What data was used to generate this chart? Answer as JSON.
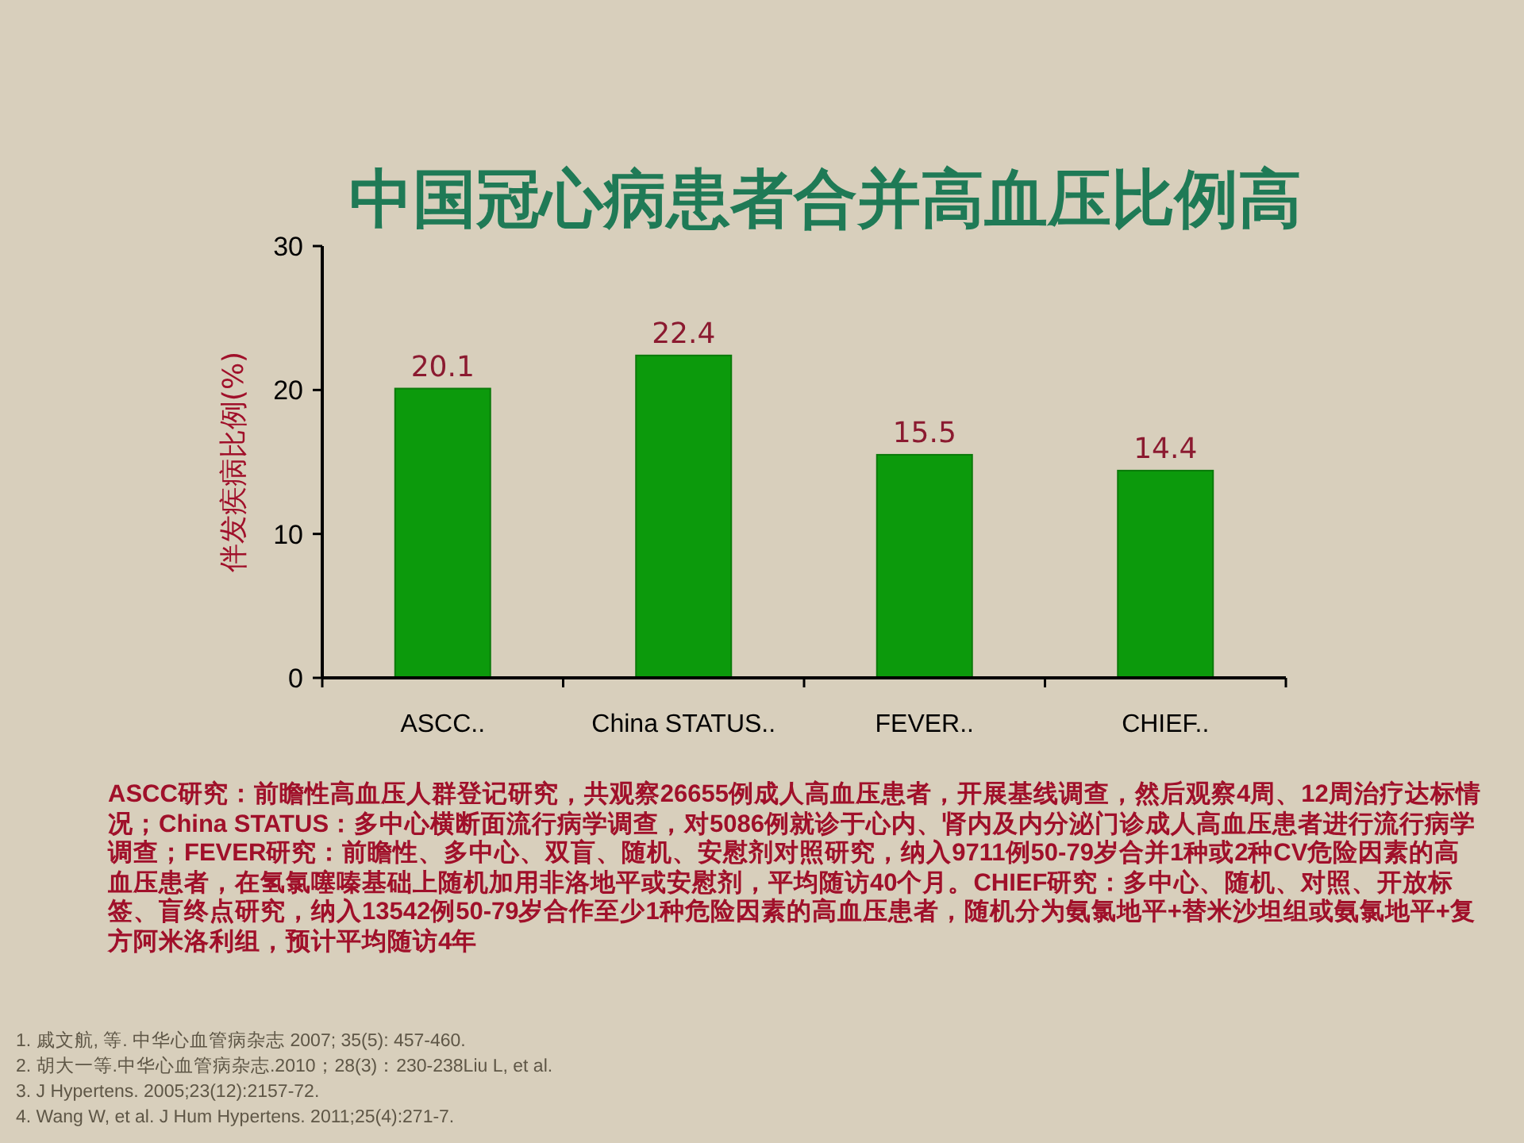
{
  "chart_data": {
    "type": "bar",
    "title": "中国冠心病患者合并高血压比例高",
    "ylabel": "伴发疾病比例(%)",
    "categories": [
      "ASCC..",
      "China STATUS..",
      "FEVER..",
      "CHIEF.."
    ],
    "values": [
      20.1,
      22.4,
      15.5,
      14.4
    ],
    "color": "#0c9a0c",
    "ylim": [
      0,
      30
    ],
    "yticks": [
      0,
      10,
      20,
      30
    ],
    "grid": false,
    "data_labels": true,
    "annotations": [
      "ASCC研究：前瞻性高血压人群登记研究，共观察26655例成人高血压患者，开展基线调查，然后观察4周、12周治疗达标情况；China STATUS：多中心横断面流行病学调查，对5086例就诊于心内、肾内及内分泌门诊成人高血压患者进行流行病学调查；FEVER研究：前瞻性、多中心、双盲、随机、安慰剂对照研究，纳入9711例50-79岁合并1种或2种CV危险因素的高血压患者，在氢氯噻嗪基础上随机加用非洛地平或安慰剂，平均随访40个月。CHIEF研究：多中心、随机、对照、开放标签、盲终点研究，纳入13542例50-79岁合作至少1种危险因素的高血压患者，随机分为氨氯地平+替米沙坦组或氨氯地平+复方阿米洛利组，预计平均随访4年",
      "1.  戚文航, 等. 中华心血管病杂志 2007; 35(5): 457-460.",
      "2.  胡大一等.中华心血管病杂志.2010；28(3)：230-238Liu L, et al.",
      "3.  J Hypertens. 2005;23(12):2157-72.",
      "4.  Wang W, et al. J Hum Hypertens. 2011;25(4):271-7."
    ]
  }
}
